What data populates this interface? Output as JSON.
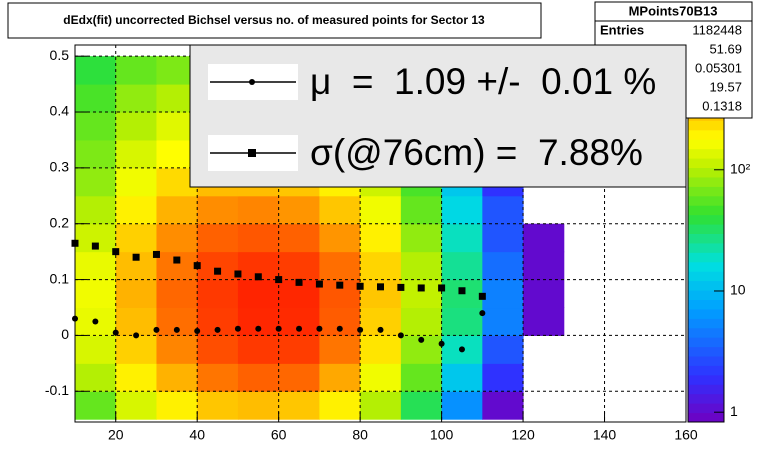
{
  "chart_data": {
    "type": "heatmap-profile",
    "title": "dEdx(fit) uncorrected Bichsel versus no. of measured points for Sector 13",
    "xlim": [
      10,
      160
    ],
    "ylim": [
      -0.155,
      0.52
    ],
    "xticks": [
      20,
      40,
      60,
      80,
      100,
      120,
      140,
      160
    ],
    "yticks": [
      -0.1,
      0,
      0.1,
      0.2,
      0.3,
      0.4,
      0.5
    ],
    "grid": true,
    "x_bins": [
      10,
      20,
      30,
      40,
      50,
      60,
      70,
      80,
      90,
      100,
      110,
      120,
      130
    ],
    "y_bins": [
      -0.15,
      -0.1,
      -0.05,
      0,
      0.05,
      0.1,
      0.15,
      0.2,
      0.25,
      0.3,
      0.35,
      0.4,
      0.45,
      0.5
    ],
    "counts": [
      [
        60,
        130,
        200,
        280,
        300,
        280,
        200,
        100,
        35,
        6,
        1,
        0
      ],
      [
        100,
        200,
        320,
        460,
        520,
        500,
        340,
        160,
        60,
        12,
        2,
        0
      ],
      [
        130,
        260,
        420,
        600,
        700,
        680,
        460,
        220,
        80,
        20,
        3,
        0
      ],
      [
        150,
        300,
        480,
        680,
        800,
        780,
        540,
        260,
        100,
        28,
        5,
        1
      ],
      [
        160,
        320,
        500,
        700,
        820,
        800,
        560,
        280,
        110,
        30,
        5,
        1
      ],
      [
        150,
        300,
        460,
        640,
        720,
        680,
        480,
        250,
        100,
        25,
        4,
        1
      ],
      [
        120,
        260,
        400,
        520,
        560,
        520,
        380,
        200,
        80,
        20,
        3,
        1
      ],
      [
        100,
        200,
        320,
        400,
        420,
        380,
        280,
        160,
        60,
        15,
        3,
        0
      ],
      [
        80,
        160,
        240,
        300,
        300,
        280,
        200,
        120,
        50,
        12,
        2,
        0
      ],
      [
        70,
        130,
        180,
        220,
        220,
        200,
        150,
        90,
        40,
        10,
        2,
        0
      ],
      [
        60,
        100,
        140,
        160,
        160,
        150,
        110,
        70,
        30,
        8,
        1,
        0
      ],
      [
        50,
        80,
        100,
        110,
        110,
        100,
        80,
        50,
        20,
        5,
        1,
        0
      ],
      [
        40,
        60,
        70,
        70,
        70,
        60,
        50,
        35,
        15,
        4,
        0,
        0
      ]
    ],
    "zlim": [
      0.83,
      1070
    ],
    "log_z": true,
    "zticks": [
      {
        "value": 1,
        "label": "1"
      },
      {
        "value": 10,
        "label": "10"
      },
      {
        "value": 100,
        "label": "10²"
      }
    ],
    "x": [
      10,
      15,
      20,
      25,
      30,
      35,
      40,
      45,
      50,
      55,
      60,
      65,
      70,
      75,
      80,
      85,
      90,
      95,
      100,
      105,
      110
    ],
    "series": [
      {
        "name": "μ  =  1.09 +/-  0.01 %",
        "marker": "circle",
        "color": "#000000",
        "values": [
          0.03,
          0.025,
          0.005,
          0.0,
          0.01,
          0.01,
          0.008,
          0.01,
          0.012,
          0.012,
          0.012,
          0.012,
          0.012,
          0.012,
          0.01,
          0.01,
          0.0,
          -0.008,
          -0.015,
          -0.025,
          0.04
        ]
      },
      {
        "name": "σ(@76cm) =  7.88%",
        "marker": "square",
        "color": "#000000",
        "values": [
          0.165,
          0.16,
          0.15,
          0.14,
          0.145,
          0.135,
          0.125,
          0.115,
          0.11,
          0.105,
          0.1,
          0.095,
          0.092,
          0.09,
          0.088,
          0.087,
          0.086,
          0.085,
          0.085,
          0.08,
          0.07
        ]
      }
    ]
  },
  "stats_box": {
    "title": "MPoints70B13",
    "entries_label": "Entries",
    "values": [
      1182448,
      51.69,
      0.05301,
      19.57,
      0.1318
    ]
  }
}
